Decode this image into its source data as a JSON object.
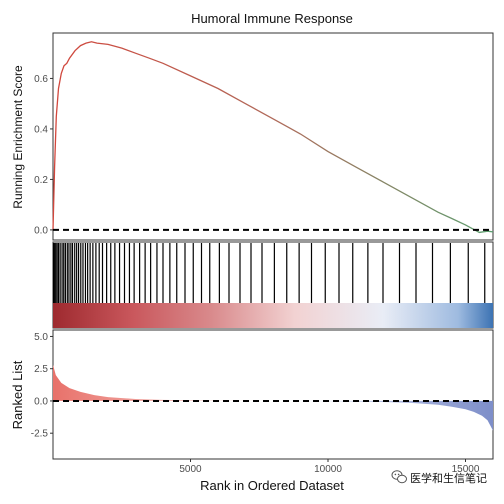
{
  "chart_data": {
    "type": "line",
    "title": "Humoral Immune Response",
    "xlabel": "Rank in Ordered Dataset",
    "xlim": [
      0,
      16000
    ],
    "x_ticks": [
      5000,
      10000,
      15000
    ],
    "panels": [
      {
        "name": "enrichment",
        "ylabel": "Running Enrichment Score",
        "ylim": [
          -0.04,
          0.78
        ],
        "y_ticks": [
          0.0,
          0.2,
          0.4,
          0.6
        ],
        "y_tick_labels": [
          "0.0",
          "0.2",
          "0.4",
          "0.6"
        ],
        "reference_line": 0.0,
        "line_color_start": "#cf4a40",
        "line_color_end": "#5f9e6e",
        "x": [
          0,
          60,
          120,
          200,
          300,
          400,
          500,
          600,
          800,
          1000,
          1200,
          1400,
          1600,
          2000,
          2500,
          3000,
          3500,
          4000,
          5000,
          6000,
          7000,
          8000,
          9000,
          10000,
          11000,
          12000,
          13000,
          14000,
          14500,
          15000,
          15500,
          15800,
          16000
        ],
        "y": [
          0.0,
          0.25,
          0.45,
          0.56,
          0.62,
          0.65,
          0.66,
          0.68,
          0.71,
          0.73,
          0.74,
          0.745,
          0.74,
          0.735,
          0.72,
          0.7,
          0.68,
          0.66,
          0.61,
          0.56,
          0.5,
          0.44,
          0.38,
          0.31,
          0.25,
          0.19,
          0.13,
          0.07,
          0.045,
          0.02,
          -0.01,
          -0.005,
          -0.008
        ]
      },
      {
        "name": "gene-hits",
        "description_colors": [
          "#a52a2a",
          "#d46a6a",
          "#f0c8c8",
          "#e8ecf5",
          "#8fb0d8",
          "#3a6fb0"
        ],
        "hits": [
          20,
          60,
          100,
          150,
          200,
          260,
          330,
          390,
          450,
          520,
          580,
          650,
          710,
          790,
          860,
          930,
          1010,
          1090,
          1180,
          1260,
          1350,
          1450,
          1560,
          1680,
          1800,
          1950,
          2100,
          2250,
          2420,
          2600,
          2780,
          2950,
          3150,
          3350,
          3550,
          3780,
          4000,
          4250,
          4500,
          4800,
          5100,
          5400,
          5700,
          6050,
          6400,
          6800,
          7200,
          7600,
          8050,
          8500,
          8950,
          9400,
          9900,
          10400,
          10900,
          11450,
          12000,
          12600,
          13200,
          13800,
          14450,
          15100,
          15700
        ]
      },
      {
        "name": "ranked-list",
        "ylabel": "Ranked List",
        "ylim": [
          -4.5,
          5.5
        ],
        "y_ticks": [
          -2.5,
          0.0,
          2.5,
          5.0
        ],
        "y_tick_labels": [
          "-2.5",
          "0.0",
          "2.5",
          "5.0"
        ],
        "reference_line": 0.0,
        "x": [
          0,
          100,
          300,
          600,
          1000,
          1500,
          2000,
          3000,
          4000,
          6000,
          8000,
          10000,
          12000,
          13000,
          14000,
          14500,
          15000,
          15300,
          15600,
          15800,
          16000
        ],
        "y": [
          2.8,
          2.0,
          1.4,
          1.0,
          0.7,
          0.45,
          0.3,
          0.15,
          0.08,
          0.03,
          0.0,
          -0.03,
          -0.08,
          -0.15,
          -0.3,
          -0.45,
          -0.65,
          -0.85,
          -1.15,
          -1.5,
          -2.3
        ],
        "positive_color": "#e8716a",
        "negative_color": "#7d8ec9"
      }
    ]
  },
  "watermark": {
    "icon": "wechat-icon",
    "text": "医学和生信笔记"
  }
}
